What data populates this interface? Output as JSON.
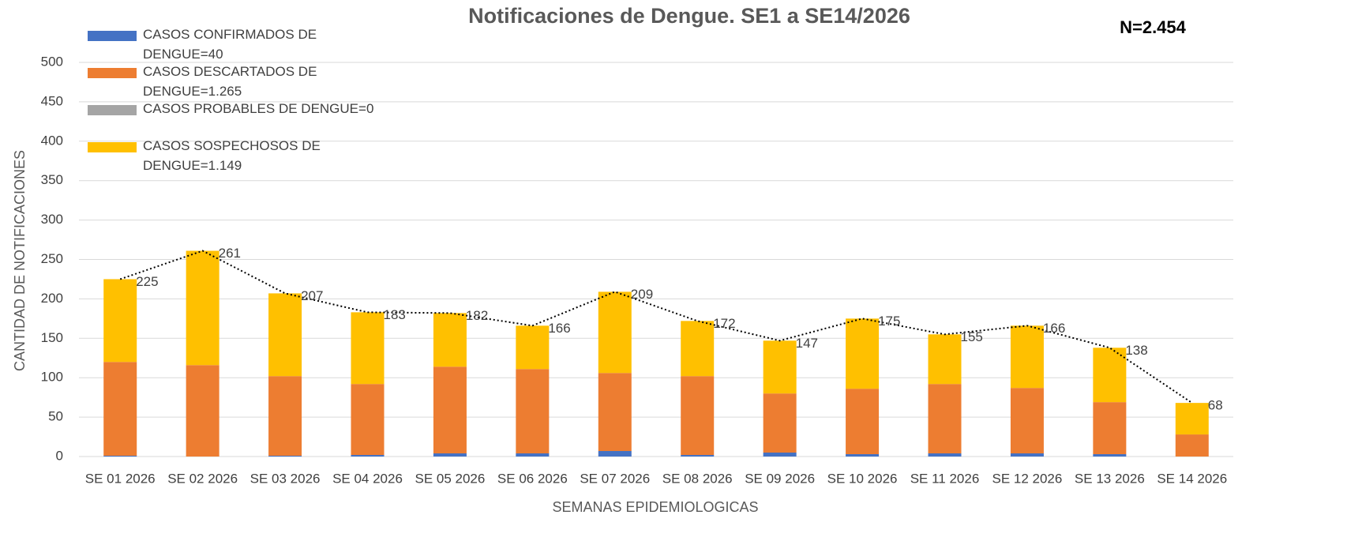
{
  "chart_data": {
    "type": "bar",
    "stacked": true,
    "title": "Notificaciones de Dengue. SE1 a SE14/2026",
    "annotation": "N=2.454",
    "x_label": "SEMANAS EPIDEMIOLOGICAS",
    "y_label": "CANTIDAD DE NOTIFICACIONES",
    "categories": [
      "SE 01 2026",
      "SE 02 2026",
      "SE 03 2026",
      "SE 04 2026",
      "SE 05 2026",
      "SE 06 2026",
      "SE 07 2026",
      "SE 08 2026",
      "SE 09 2026",
      "SE 10 2026",
      "SE 11 2026",
      "SE 12 2026",
      "SE 13 2026",
      "SE 14 2026"
    ],
    "series": [
      {
        "name": "CASOS CONFIRMADOS DE DENGUE=40",
        "color": "#4472c4",
        "values": [
          1,
          0,
          1,
          2,
          4,
          4,
          7,
          2,
          5,
          3,
          4,
          4,
          3,
          0
        ]
      },
      {
        "name": "CASOS DESCARTADOS DE DENGUE=1.265",
        "color": "#ed7d31",
        "values": [
          119,
          116,
          101,
          90,
          110,
          107,
          99,
          100,
          75,
          83,
          88,
          83,
          66,
          28
        ]
      },
      {
        "name": "CASOS PROBABLES DE DENGUE=0",
        "color": "#a5a5a5",
        "values": [
          0,
          0,
          0,
          0,
          0,
          0,
          0,
          0,
          0,
          0,
          0,
          0,
          0,
          0
        ]
      },
      {
        "name": "CASOS SOSPECHOSOS DE DENGUE=1.149",
        "color": "#ffc000",
        "values": [
          105,
          145,
          105,
          91,
          68,
          55,
          103,
          70,
          67,
          89,
          63,
          79,
          69,
          40
        ]
      }
    ],
    "totals": [
      225,
      261,
      207,
      183,
      182,
      166,
      209,
      172,
      147,
      175,
      155,
      166,
      138,
      68
    ],
    "ylim": [
      0,
      500
    ],
    "yticks": [
      0,
      50,
      100,
      150,
      200,
      250,
      300,
      350,
      400,
      450,
      500
    ],
    "grid": true,
    "legend": "top-left"
  }
}
